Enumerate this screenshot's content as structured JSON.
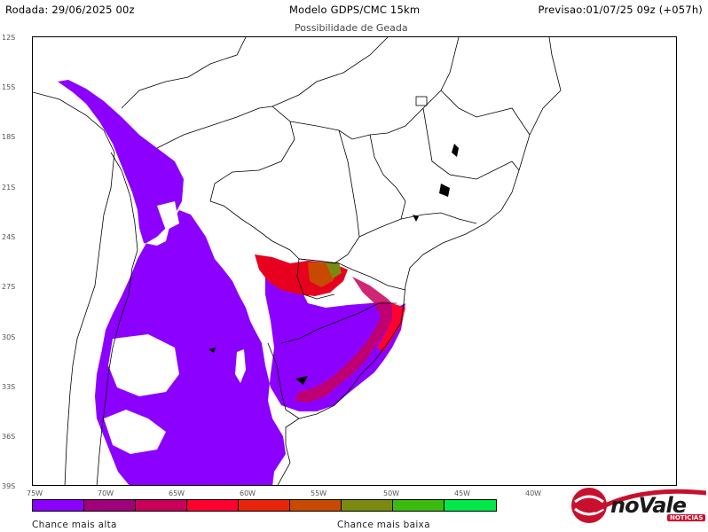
{
  "header": {
    "run": "Rodada: 29/06/2025 00z",
    "model": "Modelo GDPS/CMC 15km",
    "forecast": "Previsao:01/07/25 09z (+057h)",
    "subtitle": "Possibilidade de Geada"
  },
  "axes": {
    "lat_labels": [
      "12S",
      "15S",
      "18S",
      "21S",
      "24S",
      "27S",
      "30S",
      "33S",
      "36S",
      "39S"
    ],
    "lon_labels": [
      "75W",
      "70W",
      "65W",
      "60W",
      "55W",
      "50W",
      "45W",
      "40W"
    ]
  },
  "legend": {
    "colors": [
      "#8b00ff",
      "#a0007a",
      "#c8005a",
      "#ff0030",
      "#e8240a",
      "#c84a00",
      "#7a8a10",
      "#3cba10",
      "#00e84a"
    ],
    "high_label": "Chance mais alta",
    "low_label": "Chance mais baixa"
  },
  "logo": {
    "name": "noVale",
    "sub": "NOTÍCIAS"
  }
}
